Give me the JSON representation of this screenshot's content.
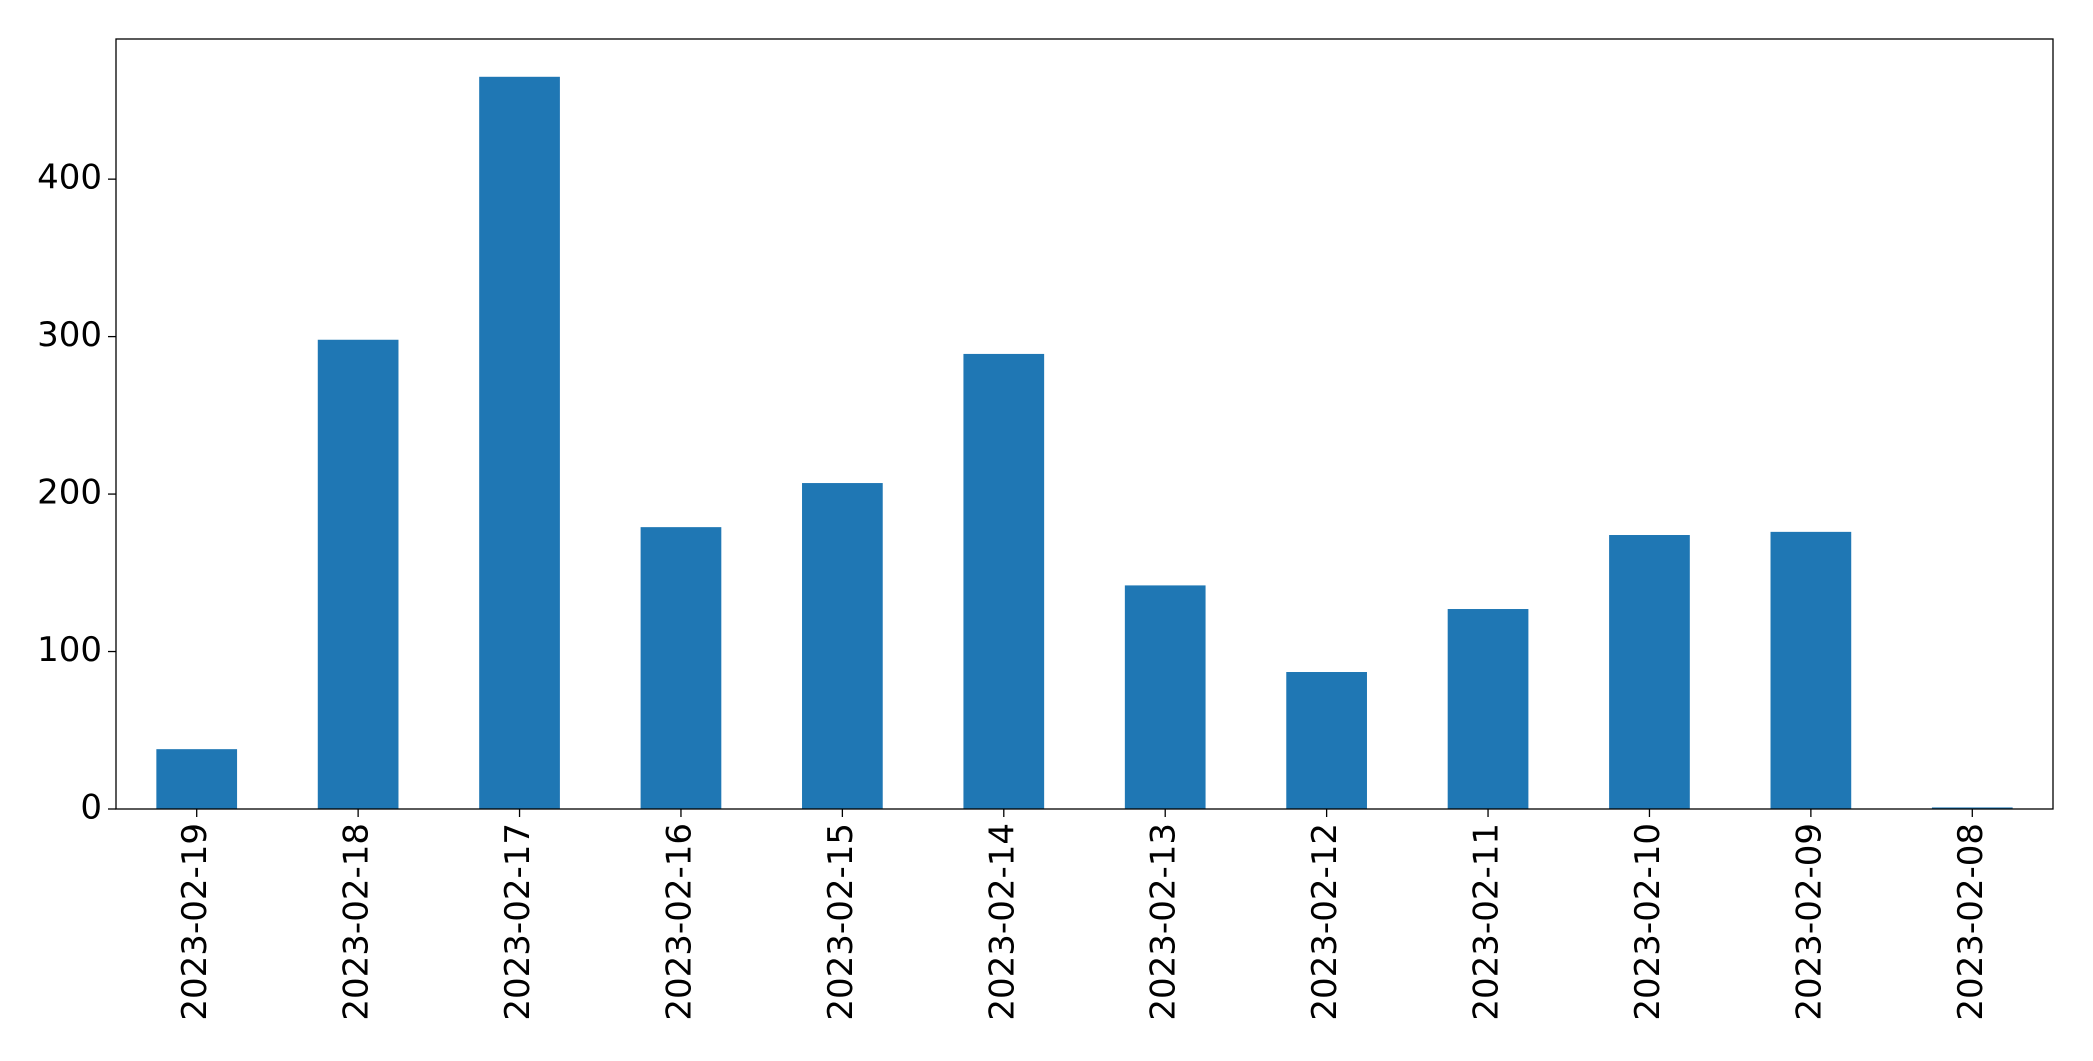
{
  "chart_data": {
    "type": "bar",
    "categories": [
      "2023-02-19",
      "2023-02-18",
      "2023-02-17",
      "2023-02-16",
      "2023-02-15",
      "2023-02-14",
      "2023-02-13",
      "2023-02-12",
      "2023-02-11",
      "2023-02-10",
      "2023-02-09",
      "2023-02-08"
    ],
    "values": [
      38,
      298,
      465,
      179,
      207,
      289,
      142,
      87,
      127,
      174,
      176,
      1
    ],
    "color": "#1f77b4",
    "ylim": [
      0,
      489
    ],
    "yticks": [
      0,
      100,
      200,
      300,
      400
    ],
    "grid": false
  }
}
